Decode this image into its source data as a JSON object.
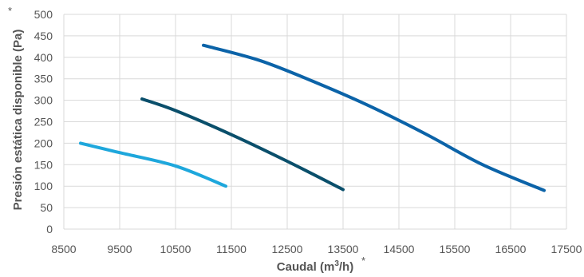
{
  "chart_data": {
    "type": "line",
    "xlabel": {
      "prefix": "Caudal (m",
      "sup": "3",
      "suffix": "/h)"
    },
    "ylabel": "Presión estática disponible (Pa)",
    "axis_marker": "*",
    "xlim": [
      8500,
      17500
    ],
    "ylim": [
      0,
      500
    ],
    "x_ticks": [
      "8500",
      "9500",
      "10500",
      "11500",
      "12500",
      "13500",
      "14500",
      "15500",
      "16500",
      "17500"
    ],
    "y_ticks": [
      "0",
      "50",
      "100",
      "150",
      "200",
      "250",
      "300",
      "350",
      "400",
      "450",
      "500"
    ],
    "grid": true,
    "series": [
      {
        "color": "#1ea7dc",
        "points": [
          [
            8800,
            200
          ],
          [
            9500,
            178
          ],
          [
            10500,
            147
          ],
          [
            11400,
            100
          ]
        ]
      },
      {
        "color": "#0a4f6b",
        "points": [
          [
            9900,
            303
          ],
          [
            10500,
            276
          ],
          [
            11500,
            220
          ],
          [
            12500,
            158
          ],
          [
            13500,
            92
          ]
        ]
      },
      {
        "color": "#0b63a8",
        "points": [
          [
            11000,
            428
          ],
          [
            12000,
            393
          ],
          [
            13000,
            342
          ],
          [
            14000,
            285
          ],
          [
            15000,
            220
          ],
          [
            16000,
            150
          ],
          [
            17100,
            90
          ]
        ]
      }
    ]
  }
}
